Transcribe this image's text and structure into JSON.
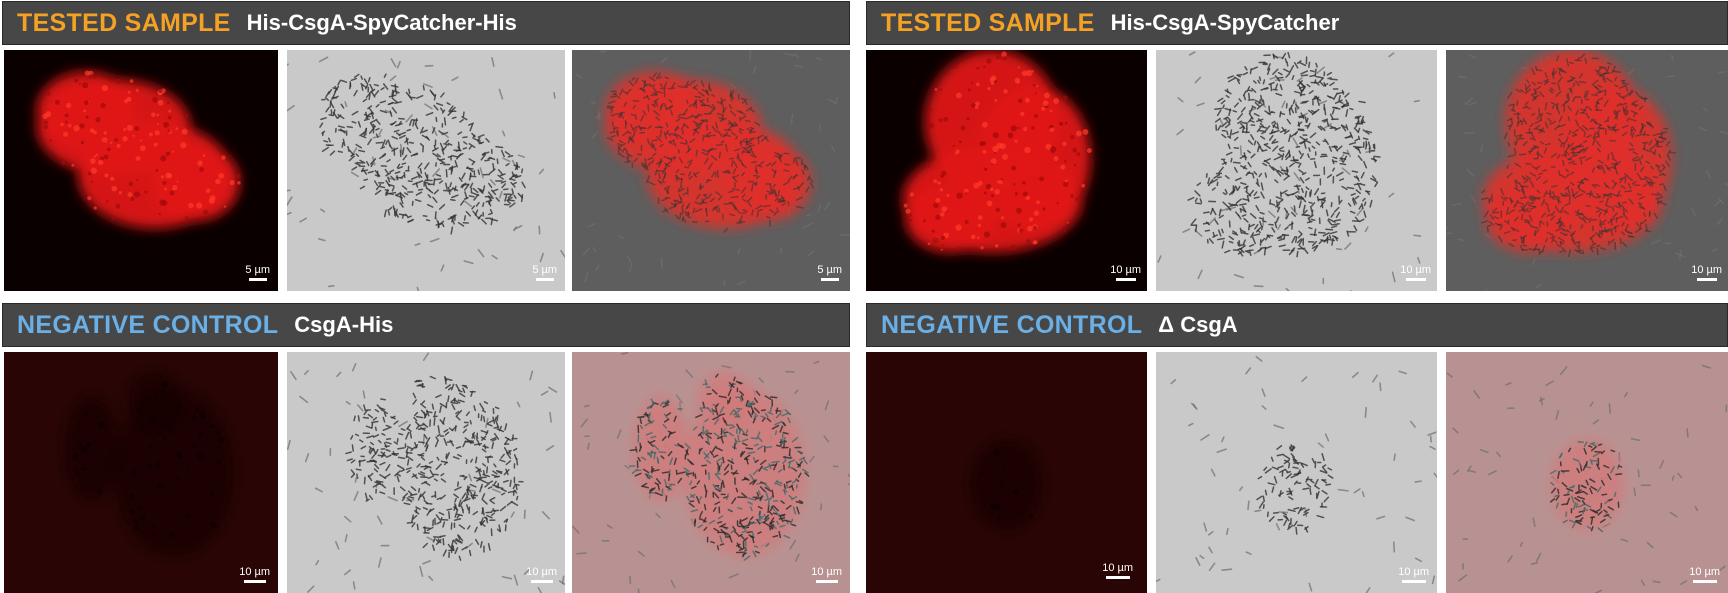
{
  "panels": [
    {
      "tag": "TESTED SAMPLE",
      "name": "His-CsgA-SpyCatcher-His",
      "tag_color": "#f4a124",
      "images": [
        {
          "kind": "fluorescence",
          "scale": "5 µm"
        },
        {
          "kind": "brightfield",
          "scale": "5 µm"
        },
        {
          "kind": "merge",
          "scale": "5 µm"
        }
      ]
    },
    {
      "tag": "TESTED SAMPLE",
      "name": "His-CsgA-SpyCatcher",
      "tag_color": "#f4a124",
      "images": [
        {
          "kind": "fluorescence",
          "scale": "10 µm"
        },
        {
          "kind": "brightfield",
          "scale": "10 µm"
        },
        {
          "kind": "merge",
          "scale": "10 µm"
        }
      ]
    },
    {
      "tag": "NEGATIVE CONTROL",
      "name": "CsgA-His",
      "tag_color": "#6aafe6",
      "images": [
        {
          "kind": "fluorescence",
          "scale": "10 µm"
        },
        {
          "kind": "brightfield",
          "scale": "10 µm"
        },
        {
          "kind": "merge",
          "scale": "10 µm"
        }
      ]
    },
    {
      "tag": "NEGATIVE CONTROL",
      "name": "Δ CsgA",
      "tag_color": "#6aafe6",
      "images": [
        {
          "kind": "fluorescence",
          "scale": "10 µm"
        },
        {
          "kind": "brightfield",
          "scale": "10 µm"
        },
        {
          "kind": "merge",
          "scale": "10 µm"
        }
      ]
    }
  ]
}
